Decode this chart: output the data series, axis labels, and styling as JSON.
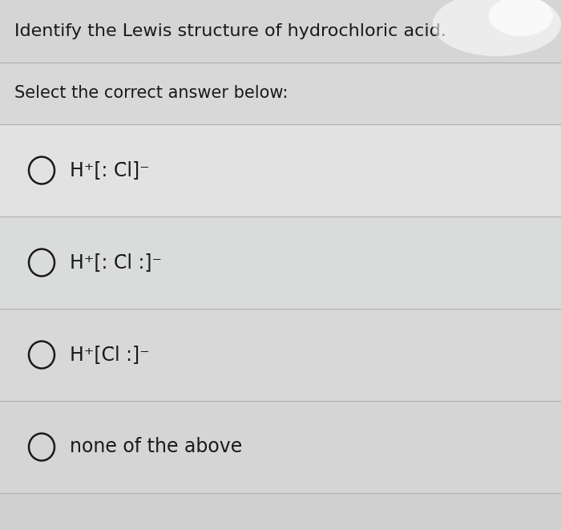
{
  "title": "Identify the Lewis structure of hydrochloric acid.",
  "subtitle": "Select the correct answer below:",
  "options_raw": [
    "H⁺[: C̈l]⁻",
    "H⁺[: C̈l :]⁻",
    "H⁺[C̈l :]⁻",
    "none of the above"
  ],
  "bg_color": "#dcdcdc",
  "title_bg": "#d5d5d5",
  "subtitle_bg": "#d8d8d8",
  "row_colors": [
    "#e0e0e0",
    "#d8d8d8",
    "#d5d5d5",
    "#d2d2d2"
  ],
  "title_fontsize": 16,
  "subtitle_fontsize": 15,
  "option_fontsize": 17,
  "text_color": "#1a1a1a",
  "circle_color": "#1a1a1a",
  "divider_color": "#b0b0b0",
  "divider_lw": 0.8
}
